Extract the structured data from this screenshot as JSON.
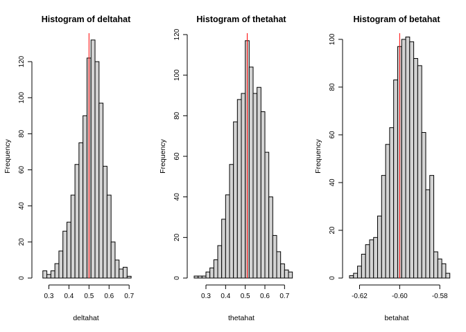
{
  "chart_data": [
    {
      "type": "bar",
      "title": "Histogram of deltahat",
      "xlabel": "deltahat",
      "ylabel": "Frequency",
      "xlim": [
        0.25,
        0.72
      ],
      "ylim": [
        0,
        135
      ],
      "xticks": [
        0.3,
        0.4,
        0.5,
        0.6,
        0.7
      ],
      "xticklabels": [
        "0.3",
        "0.4",
        "0.5",
        "0.6",
        "0.7"
      ],
      "yticks": [
        0,
        20,
        40,
        60,
        80,
        100,
        120
      ],
      "yticklabels": [
        "0",
        "20",
        "40",
        "60",
        "80",
        "100",
        "120"
      ],
      "bin_start": 0.27,
      "bin_width": 0.02,
      "values": [
        4,
        2,
        4,
        8,
        15,
        26,
        31,
        46,
        63,
        75,
        90,
        122,
        132,
        120,
        97,
        62,
        46,
        20,
        10,
        5,
        6,
        1
      ],
      "refline_x": 0.5
    },
    {
      "type": "bar",
      "title": "Histogram of thetahat",
      "xlabel": "thetahat",
      "ylabel": "Frequency",
      "xlim": [
        0.24,
        0.72
      ],
      "ylim": [
        0,
        120
      ],
      "xticks": [
        0.3,
        0.4,
        0.5,
        0.6,
        0.7
      ],
      "xticklabels": [
        "0.3",
        "0.4",
        "0.5",
        "0.6",
        "0.7"
      ],
      "yticks": [
        0,
        20,
        40,
        60,
        80,
        100,
        120
      ],
      "yticklabels": [
        "0",
        "20",
        "40",
        "60",
        "80",
        "100",
        "120"
      ],
      "bin_start": 0.24,
      "bin_width": 0.02,
      "values": [
        1,
        1,
        1,
        3,
        5,
        9,
        16,
        29,
        41,
        56,
        77,
        88,
        91,
        117,
        104,
        91,
        94,
        82,
        62,
        40,
        21,
        13,
        7,
        4,
        3
      ],
      "refline_x": 0.51
    },
    {
      "type": "bar",
      "title": "Histogram of betahat",
      "xlabel": "betahat",
      "ylabel": "Frequency",
      "xlim": [
        -0.625,
        -0.578
      ],
      "ylim": [
        0,
        102
      ],
      "xticks": [
        -0.62,
        -0.6,
        -0.58
      ],
      "xticklabels": [
        "-0.62",
        "-0.60",
        "-0.58"
      ],
      "yticks": [
        0,
        20,
        40,
        60,
        80,
        100
      ],
      "yticklabels": [
        "0",
        "20",
        "40",
        "60",
        "80",
        "100"
      ],
      "bin_start": -0.625,
      "bin_width": 0.002,
      "values": [
        1,
        2,
        5,
        10,
        14,
        16,
        17,
        26,
        43,
        56,
        63,
        83,
        97,
        100,
        101,
        99,
        92,
        89,
        61,
        37,
        43,
        11,
        8,
        6,
        2
      ],
      "refline_x": -0.6
    }
  ]
}
